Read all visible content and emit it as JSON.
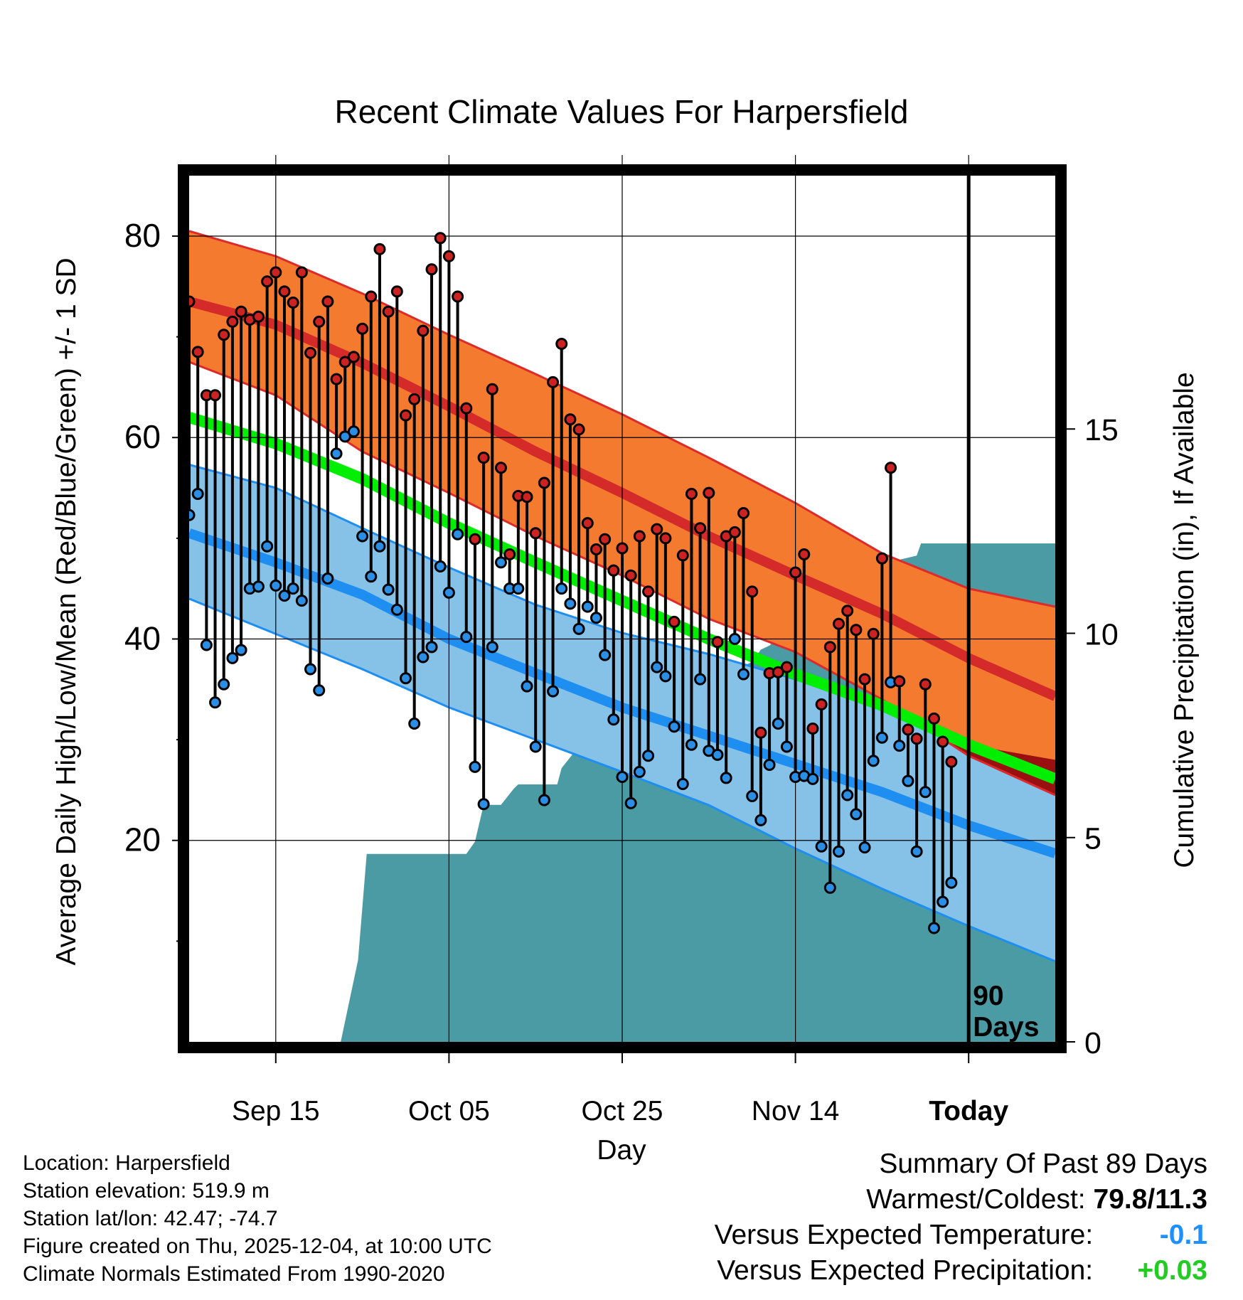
{
  "chart_data": {
    "type": "line",
    "title": "Recent Climate Values For Harpersfield",
    "xlabel": "Day",
    "ylabel": "Average Daily High/Low/Mean (Red/Blue/Green) +/- 1 SD",
    "y2label": "Cumulative Precipitation (in), If Available",
    "xlim": [
      0,
      100
    ],
    "ylim": [
      0,
      86
    ],
    "y2lim": [
      0,
      21.2
    ],
    "y_ticks": [
      80,
      60,
      40,
      20
    ],
    "y_tick_labels": [
      "80",
      "60",
      "40",
      "20"
    ],
    "y_minor_ticks": [
      70,
      50,
      30,
      10
    ],
    "y2_ticks": [
      15,
      10,
      5,
      0
    ],
    "y2_tick_labels": [
      "15",
      "10",
      "5",
      "0"
    ],
    "x_ticks": [
      10,
      30,
      50,
      70,
      90
    ],
    "x_tick_labels": [
      "Sep 15",
      "Oct 05",
      "Oct 25",
      "Nov 14",
      "Today"
    ],
    "today_x": 90,
    "today_label": [
      "90",
      "Days"
    ],
    "colors": {
      "high_band": "#f47a30",
      "high_band_edge": "#dd2a2a",
      "high_mean": "#d42a2a",
      "low_band": "#86c1e8",
      "low_band_edge": "#1e8ff0",
      "low_mean": "#1e8ff0",
      "mean": "#00ee00",
      "overlap": "#9a1010",
      "precip": "#4a9ba3",
      "high_point": "#cc2222",
      "low_point": "#2b8ee5"
    },
    "normals": {
      "x": [
        0,
        10,
        20,
        30,
        40,
        50,
        60,
        70,
        80,
        90,
        100
      ],
      "high_mean": [
        73.5,
        71.2,
        67.4,
        63.1,
        58.6,
        54.5,
        50.2,
        46.3,
        42.5,
        38.1,
        34.3
      ],
      "high_upper": [
        80.5,
        78.0,
        74.3,
        70.2,
        66.3,
        62.3,
        58.0,
        53.5,
        48.5,
        45.0,
        43.2
      ],
      "high_lower": [
        67.5,
        64.2,
        58.6,
        54.5,
        50.2,
        46.3,
        42.0,
        38.7,
        34.0,
        28.4,
        24.5
      ],
      "low_mean": [
        50.5,
        47.6,
        44.4,
        40.0,
        36.6,
        33.2,
        30.4,
        27.6,
        24.8,
        21.5,
        18.7
      ],
      "low_upper": [
        57.3,
        55.0,
        51.0,
        47.1,
        43.4,
        40.6,
        38.5,
        36.0,
        33.0,
        29.5,
        28.0
      ],
      "low_lower": [
        44.0,
        40.5,
        37.0,
        33.2,
        30.0,
        26.8,
        23.5,
        19.2,
        15.2,
        11.5,
        8.0
      ],
      "mean": [
        62.0,
        59.4,
        55.9,
        51.5,
        47.6,
        43.8,
        40.0,
        36.5,
        33.4,
        29.5,
        26.1
      ]
    },
    "daily": {
      "x": [
        0,
        1,
        2,
        3,
        4,
        5,
        6,
        7,
        8,
        9,
        10,
        11,
        12,
        13,
        14,
        15,
        16,
        17,
        18,
        19,
        20,
        21,
        22,
        23,
        24,
        25,
        26,
        27,
        28,
        29,
        30,
        31,
        32,
        33,
        34,
        35,
        36,
        37,
        38,
        39,
        40,
        41,
        42,
        43,
        44,
        45,
        46,
        47,
        48,
        49,
        50,
        51,
        52,
        53,
        54,
        55,
        56,
        57,
        58,
        59,
        60,
        61,
        62,
        63,
        64,
        65,
        66,
        67,
        68,
        69,
        70,
        71,
        72,
        73,
        74,
        75,
        76,
        77,
        78,
        79,
        80,
        81,
        82,
        83,
        84,
        85,
        86,
        87,
        88
      ],
      "high": [
        73.5,
        68.5,
        64.2,
        64.2,
        70.2,
        71.5,
        72.5,
        71.7,
        72.0,
        75.5,
        76.4,
        74.5,
        73.4,
        76.4,
        68.4,
        71.5,
        73.5,
        65.8,
        67.5,
        68.0,
        70.8,
        74.0,
        78.7,
        72.5,
        74.5,
        62.2,
        63.8,
        70.6,
        76.7,
        79.8,
        78.0,
        74.0,
        62.9,
        49.9,
        58.0,
        64.8,
        57.0,
        48.4,
        54.2,
        54.1,
        50.5,
        55.5,
        65.5,
        69.3,
        61.8,
        60.8,
        51.5,
        48.9,
        49.9,
        46.8,
        49.0,
        46.3,
        50.2,
        44.7,
        50.9,
        50.0,
        41.7,
        48.3,
        54.4,
        51.0,
        54.5,
        39.7,
        50.2,
        50.6,
        52.5,
        44.7,
        30.7,
        36.6,
        36.7,
        37.2,
        46.6,
        48.4,
        31.1,
        33.5,
        39.2,
        41.5,
        42.8,
        40.9,
        36.0,
        40.5,
        48.0,
        57.0,
        35.8,
        31.0,
        30.1,
        35.5,
        32.1,
        29.8,
        27.8
      ],
      "low": [
        52.3,
        54.4,
        39.4,
        33.7,
        35.5,
        38.1,
        38.9,
        45.0,
        45.2,
        49.2,
        45.3,
        44.3,
        45.0,
        43.8,
        37.0,
        34.9,
        46.0,
        58.4,
        60.1,
        60.6,
        50.2,
        46.2,
        49.2,
        44.9,
        42.9,
        36.1,
        31.6,
        38.2,
        39.2,
        47.2,
        44.6,
        50.4,
        40.2,
        27.3,
        23.6,
        39.2,
        47.6,
        45.0,
        45.0,
        35.3,
        29.3,
        24.0,
        34.8,
        45.0,
        43.5,
        41.0,
        43.2,
        42.1,
        38.4,
        32.0,
        26.3,
        23.7,
        26.8,
        28.4,
        37.2,
        36.3,
        31.3,
        25.6,
        29.5,
        36.0,
        28.9,
        28.5,
        26.2,
        40.0,
        36.5,
        24.4,
        22.0,
        27.5,
        31.6,
        29.3,
        26.3,
        26.4,
        26.1,
        19.4,
        15.3,
        18.9,
        24.5,
        22.6,
        19.3,
        27.9,
        30.2,
        35.7,
        29.4,
        25.9,
        18.9,
        24.8,
        11.3,
        13.9,
        15.8
      ]
    },
    "precip": {
      "x": [
        17.5,
        18.5,
        19.5,
        20.5,
        32,
        33,
        34,
        35.5,
        36,
        37.5,
        38,
        42.5,
        43,
        44.5,
        45,
        50,
        50.5,
        54.5,
        55,
        57,
        57.5,
        59.5,
        60,
        61.5,
        62,
        64,
        65,
        66,
        67,
        70,
        71,
        72,
        74,
        76,
        77,
        78,
        79,
        80,
        81,
        82,
        84,
        84.5,
        85,
        86,
        100
      ],
      "cumulative": [
        0,
        1,
        2,
        4.6,
        4.6,
        4.9,
        5.8,
        5.8,
        5.8,
        6.2,
        6.3,
        6.3,
        6.7,
        7.1,
        7.1,
        7.3,
        7.3,
        7.3,
        7.5,
        7.5,
        8.3,
        8.5,
        8.5,
        8.8,
        9.1,
        9.2,
        9.3,
        9.6,
        9.7,
        10.3,
        10.6,
        11.0,
        11.1,
        11.2,
        11.3,
        11.3,
        11.6,
        11.7,
        11.8,
        11.8,
        11.9,
        12.2,
        12.2,
        12.2,
        12.2
      ]
    }
  },
  "info": {
    "location": "Location: Harpersfield",
    "elevation": "Station elevation: 519.9 m",
    "latlon": "Station lat/lon: 42.47; -74.7",
    "created": "Figure created on Thu, 2025-12-04, at 10:00 UTC",
    "normals_period": "Climate Normals Estimated From 1990-2020"
  },
  "summary": {
    "title": "Summary Of Past 89 Days",
    "warmest_coldest_label": "Warmest/Coldest:",
    "warmest_coldest_value": "79.8/11.3",
    "temp_label": "Versus Expected Temperature:",
    "temp_value": "-0.1",
    "precip_label": "Versus Expected Precipitation:",
    "precip_value": "+0.03"
  }
}
